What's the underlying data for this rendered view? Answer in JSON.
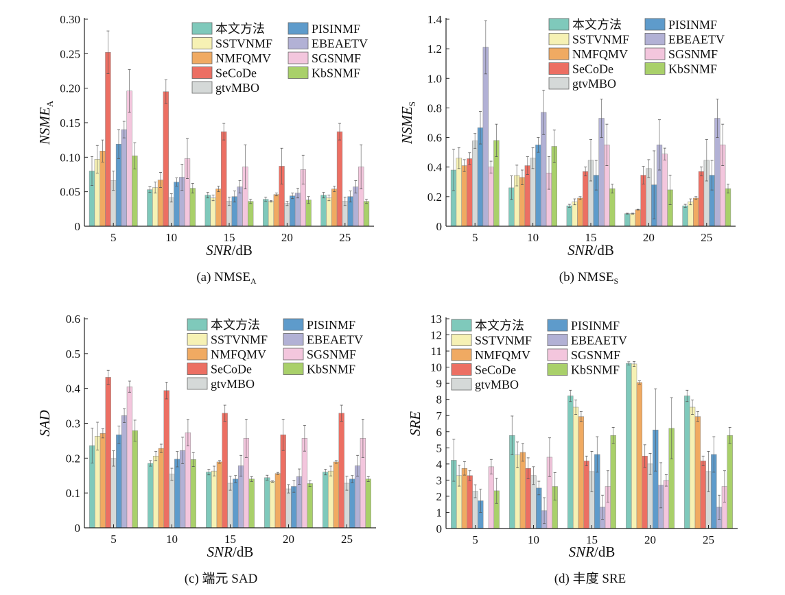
{
  "legend": [
    "本文方法",
    "SSTVNMF",
    "NMFQMV",
    "SeCoDe",
    "gtvMBO",
    "PISINMF",
    "EBEAETV",
    "SGSNMF",
    "KbSNMF"
  ],
  "colors": [
    "#7fc9bb",
    "#f6f1b4",
    "#f0aa62",
    "#ec6f63",
    "#d5d9d8",
    "#5e9bcb",
    "#b2b1d5",
    "#f3c6dd",
    "#a9d06a"
  ],
  "chart_data": [
    {
      "type": "bar",
      "id": "a",
      "caption": "(a) NMSE",
      "caption_sub": "A",
      "ylabel": "NSME",
      "ylabel_sub": "A",
      "xlabel": "SNR",
      "xlabel_unit": "/dB",
      "categories": [
        "5",
        "10",
        "15",
        "20",
        "25"
      ],
      "ylim": [
        0,
        0.3
      ],
      "yticks": [
        "0",
        "0.05",
        "0.10",
        "0.15",
        "0.20",
        "0.25",
        "0.30"
      ],
      "legend_position": "top-right",
      "values": [
        [
          0.08,
          0.097,
          0.109,
          0.252,
          0.066,
          0.119,
          0.14,
          0.196,
          0.102
        ],
        [
          0.053,
          0.056,
          0.067,
          0.195,
          0.041,
          0.064,
          0.071,
          0.098,
          0.055
        ],
        [
          0.045,
          0.041,
          0.054,
          0.137,
          0.036,
          0.043,
          0.057,
          0.086,
          0.036
        ],
        [
          0.039,
          0.036,
          0.046,
          0.087,
          0.033,
          0.044,
          0.048,
          0.082,
          0.038
        ],
        [
          0.045,
          0.041,
          0.054,
          0.137,
          0.036,
          0.043,
          0.057,
          0.086,
          0.036
        ]
      ],
      "errors": [
        [
          0.021,
          0.02,
          0.016,
          0.031,
          0.014,
          0.021,
          0.012,
          0.031,
          0.019
        ],
        [
          0.004,
          0.008,
          0.011,
          0.017,
          0.006,
          0.006,
          0.019,
          0.029,
          0.007
        ],
        [
          0.004,
          0.004,
          0.004,
          0.012,
          0.006,
          0.008,
          0.009,
          0.032,
          0.003
        ],
        [
          0.003,
          0.001,
          0.002,
          0.026,
          0.003,
          0.004,
          0.007,
          0.021,
          0.005
        ],
        [
          0.004,
          0.004,
          0.004,
          0.012,
          0.006,
          0.008,
          0.009,
          0.032,
          0.003
        ]
      ]
    },
    {
      "type": "bar",
      "id": "b",
      "caption": "(b) NMSE",
      "caption_sub": "S",
      "ylabel": "NSME",
      "ylabel_sub": "S",
      "xlabel": "SNR",
      "xlabel_unit": "/dB",
      "categories": [
        "5",
        "10",
        "15",
        "20",
        "25"
      ],
      "ylim": [
        0,
        1.4
      ],
      "yticks": [
        "0",
        "0.2",
        "0.4",
        "0.6",
        "0.8",
        "1.0",
        "1.2",
        "1.4"
      ],
      "legend_position": "top-right",
      "values": [
        [
          0.38,
          0.46,
          0.41,
          0.457,
          0.577,
          0.666,
          1.21,
          0.4,
          0.58
        ],
        [
          0.26,
          0.343,
          0.33,
          0.41,
          0.46,
          0.55,
          0.77,
          0.36,
          0.54
        ],
        [
          0.138,
          0.165,
          0.19,
          0.37,
          0.446,
          0.345,
          0.73,
          0.55,
          0.254
        ],
        [
          0.085,
          0.085,
          0.112,
          0.345,
          0.39,
          0.28,
          0.55,
          0.488,
          0.246
        ],
        [
          0.138,
          0.165,
          0.19,
          0.37,
          0.446,
          0.345,
          0.73,
          0.55,
          0.254
        ]
      ],
      "errors": [
        [
          0.14,
          0.07,
          0.04,
          0.04,
          0.05,
          0.11,
          0.18,
          0.04,
          0.11
        ],
        [
          0.08,
          0.07,
          0.05,
          0.06,
          0.07,
          0.05,
          0.15,
          0.11,
          0.11
        ],
        [
          0.01,
          0.02,
          0.01,
          0.03,
          0.14,
          0.1,
          0.13,
          0.14,
          0.03
        ],
        [
          0.003,
          0.003,
          0.003,
          0.06,
          0.06,
          0.23,
          0.17,
          0.04,
          0.1
        ],
        [
          0.01,
          0.02,
          0.01,
          0.03,
          0.14,
          0.1,
          0.13,
          0.14,
          0.03
        ]
      ]
    },
    {
      "type": "bar",
      "id": "c",
      "caption": "(c) 端元 SAD",
      "caption_sub": "",
      "ylabel": "SAD",
      "ylabel_sub": "",
      "xlabel": "SNR",
      "xlabel_unit": "/dB",
      "categories": [
        "5",
        "10",
        "15",
        "20",
        "25"
      ],
      "ylim": [
        0,
        0.6
      ],
      "yticks": [
        "0",
        "0.1",
        "0.2",
        "0.3",
        "0.4",
        "0.5",
        "0.6"
      ],
      "legend_position": "top-right",
      "values": [
        [
          0.236,
          0.263,
          0.271,
          0.432,
          0.199,
          0.267,
          0.322,
          0.405,
          0.279
        ],
        [
          0.185,
          0.206,
          0.228,
          0.394,
          0.154,
          0.197,
          0.222,
          0.273,
          0.196
        ],
        [
          0.16,
          0.163,
          0.189,
          0.329,
          0.128,
          0.14,
          0.178,
          0.257,
          0.14
        ],
        [
          0.144,
          0.133,
          0.156,
          0.267,
          0.112,
          0.119,
          0.147,
          0.257,
          0.127
        ],
        [
          0.16,
          0.163,
          0.189,
          0.329,
          0.128,
          0.14,
          0.178,
          0.257,
          0.14
        ]
      ],
      "errors": [
        [
          0.05,
          0.04,
          0.013,
          0.02,
          0.022,
          0.025,
          0.02,
          0.016,
          0.03
        ],
        [
          0.008,
          0.013,
          0.012,
          0.024,
          0.017,
          0.022,
          0.038,
          0.038,
          0.02
        ],
        [
          0.008,
          0.014,
          0.004,
          0.023,
          0.02,
          0.01,
          0.03,
          0.055,
          0.007
        ],
        [
          0.007,
          0.002,
          0.003,
          0.045,
          0.012,
          0.017,
          0.022,
          0.037,
          0.008
        ],
        [
          0.008,
          0.014,
          0.004,
          0.023,
          0.02,
          0.01,
          0.03,
          0.055,
          0.007
        ]
      ]
    },
    {
      "type": "bar",
      "id": "d",
      "caption": "(d) 丰度 SRE",
      "caption_sub": "",
      "ylabel": "SRE",
      "ylabel_sub": "",
      "xlabel": "SNR",
      "xlabel_unit": "/dB",
      "categories": [
        "5",
        "10",
        "15",
        "20",
        "25"
      ],
      "ylim": [
        0,
        13
      ],
      "yticks": [
        "0",
        "1",
        "2",
        "3",
        "4",
        "5",
        "6",
        "7",
        "8",
        "9",
        "10",
        "11",
        "12",
        "13"
      ],
      "legend_position": "top-left",
      "values": [
        [
          4.23,
          3.28,
          3.73,
          3.28,
          2.31,
          1.72,
          0,
          3.83,
          2.34
        ],
        [
          5.77,
          4.56,
          4.72,
          3.73,
          3.28,
          2.51,
          1.11,
          4.42,
          2.61
        ],
        [
          8.22,
          7.52,
          6.94,
          4.19,
          3.53,
          4.59,
          1.32,
          2.61,
          5.77
        ],
        [
          10.23,
          10.2,
          9.05,
          4.49,
          4.0,
          6.11,
          2.68,
          2.98,
          6.21
        ],
        [
          8.22,
          7.52,
          6.94,
          4.19,
          3.53,
          4.59,
          1.32,
          2.61,
          5.77
        ]
      ],
      "errors": [
        [
          1.3,
          0.65,
          0.42,
          0.3,
          0.4,
          0.72,
          0,
          0.45,
          0.78
        ],
        [
          1.2,
          0.8,
          0.55,
          0.65,
          0.55,
          0.42,
          0.8,
          1.2,
          0.85
        ],
        [
          0.35,
          0.45,
          0.3,
          0.3,
          1.25,
          1.1,
          0.75,
          0.97,
          0.5
        ],
        [
          0.1,
          0.15,
          0.1,
          0.7,
          0.65,
          2.55,
          1.4,
          0.35,
          1.9
        ],
        [
          0.35,
          0.45,
          0.3,
          0.3,
          1.25,
          1.1,
          0.75,
          0.97,
          0.5
        ]
      ]
    }
  ]
}
